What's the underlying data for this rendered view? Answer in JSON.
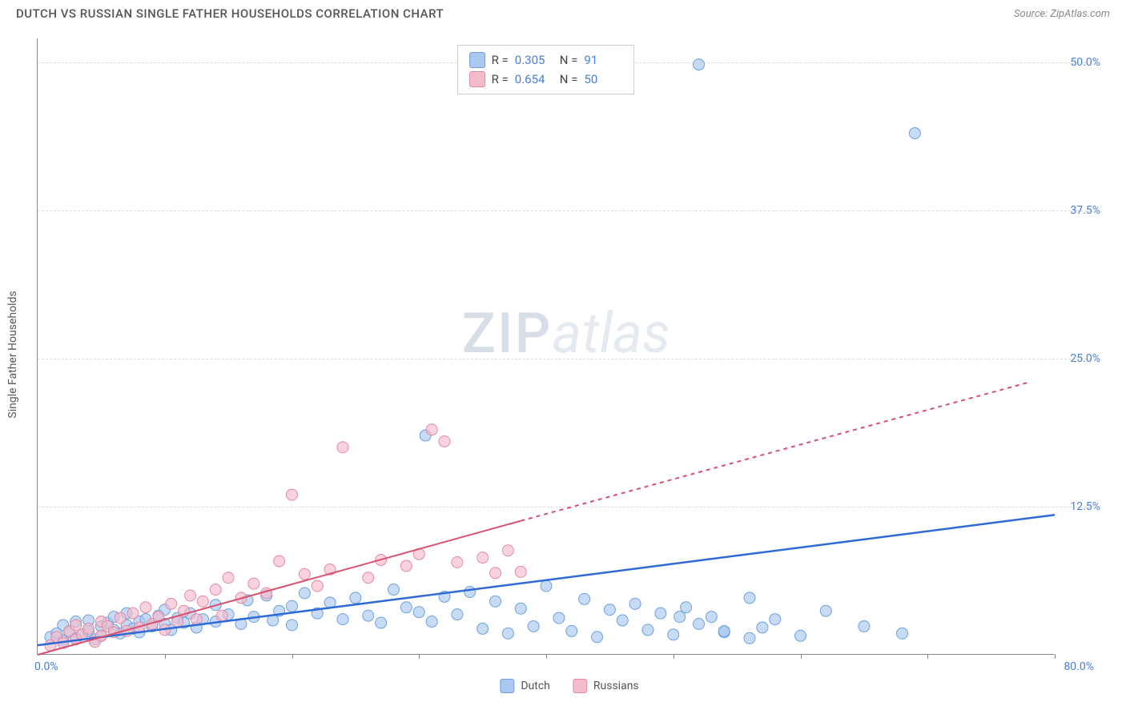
{
  "header": {
    "title": "DUTCH VS RUSSIAN SINGLE FATHER HOUSEHOLDS CORRELATION CHART",
    "source": "Source: ZipAtlas.com"
  },
  "watermark": {
    "zip": "ZIP",
    "atlas": "atlas"
  },
  "chart": {
    "type": "scatter",
    "y_axis_label": "Single Father Households",
    "background_color": "#ffffff",
    "grid_color": "#dddddd",
    "axis_color": "#888888",
    "xlim": [
      0,
      80
    ],
    "ylim": [
      0,
      52
    ],
    "x_ticks": [
      0,
      10,
      20,
      30,
      40,
      50,
      60,
      70,
      80
    ],
    "y_ticks": [
      12.5,
      25.0,
      37.5,
      50.0
    ],
    "y_tick_labels": [
      "12.5%",
      "25.0%",
      "37.5%",
      "50.0%"
    ],
    "origin_label": "0.0%",
    "xmax_label": "80.0%",
    "tick_label_color": "#4a7fd8",
    "axis_label_color": "#555555",
    "stats_box": {
      "border_color": "#cccccc",
      "rows": [
        {
          "swatch_fill": "#a9c7ef",
          "swatch_border": "#6ea0e0",
          "r_label": "R =",
          "r_value": "0.305",
          "n_label": "N =",
          "n_value": "91"
        },
        {
          "swatch_fill": "#f4bccb",
          "swatch_border": "#e38aa3",
          "r_label": "R =",
          "r_value": "0.654",
          "n_label": "N =",
          "n_value": "50"
        }
      ]
    },
    "bottom_legend": [
      {
        "swatch_fill": "#a9c7ef",
        "swatch_border": "#6ea0e0",
        "label": "Dutch"
      },
      {
        "swatch_fill": "#f4bccb",
        "swatch_border": "#e38aa3",
        "label": "Russians"
      }
    ],
    "series": [
      {
        "name": "Dutch",
        "marker_fill": "rgba(169,199,239,0.65)",
        "marker_stroke": "#6ea0e0",
        "marker_radius": 7,
        "trend_color": "#2e6bd6",
        "trend_width": 2.5,
        "trend_dash_extrapolate": "none",
        "trend": {
          "x1": 0,
          "y1": 0.8,
          "x2": 80,
          "y2": 11.8
        },
        "points": [
          [
            1,
            1.5
          ],
          [
            1.5,
            1.8
          ],
          [
            2,
            1.2
          ],
          [
            2,
            2.5
          ],
          [
            2.5,
            1.9
          ],
          [
            3,
            1.4
          ],
          [
            3,
            2.8
          ],
          [
            3.5,
            1.7
          ],
          [
            4,
            2.0
          ],
          [
            4,
            2.9
          ],
          [
            4.5,
            1.3
          ],
          [
            5,
            2.4
          ],
          [
            5,
            1.6
          ],
          [
            5.5,
            2.7
          ],
          [
            6,
            2.1
          ],
          [
            6,
            3.2
          ],
          [
            6.5,
            1.8
          ],
          [
            7,
            2.5
          ],
          [
            7,
            3.5
          ],
          [
            7.5,
            2.2
          ],
          [
            8,
            2.8
          ],
          [
            8,
            1.9
          ],
          [
            8.5,
            3.0
          ],
          [
            9,
            2.4
          ],
          [
            9.5,
            3.3
          ],
          [
            10,
            2.6
          ],
          [
            10,
            3.8
          ],
          [
            10.5,
            2.1
          ],
          [
            11,
            3.1
          ],
          [
            11.5,
            2.7
          ],
          [
            12,
            3.5
          ],
          [
            12.5,
            2.3
          ],
          [
            13,
            3.0
          ],
          [
            14,
            2.8
          ],
          [
            14,
            4.2
          ],
          [
            15,
            3.4
          ],
          [
            16,
            2.6
          ],
          [
            16.5,
            4.6
          ],
          [
            17,
            3.2
          ],
          [
            18,
            5.0
          ],
          [
            18.5,
            2.9
          ],
          [
            19,
            3.7
          ],
          [
            20,
            4.1
          ],
          [
            20,
            2.5
          ],
          [
            21,
            5.2
          ],
          [
            22,
            3.5
          ],
          [
            23,
            4.4
          ],
          [
            24,
            3.0
          ],
          [
            25,
            4.8
          ],
          [
            26,
            3.3
          ],
          [
            27,
            2.7
          ],
          [
            28,
            5.5
          ],
          [
            29,
            4.0
          ],
          [
            30,
            3.6
          ],
          [
            30.5,
            18.5
          ],
          [
            31,
            2.8
          ],
          [
            32,
            4.9
          ],
          [
            33,
            3.4
          ],
          [
            34,
            5.3
          ],
          [
            35,
            2.2
          ],
          [
            36,
            4.5
          ],
          [
            37,
            1.8
          ],
          [
            38,
            3.9
          ],
          [
            39,
            2.4
          ],
          [
            40,
            5.8
          ],
          [
            41,
            3.1
          ],
          [
            42,
            2.0
          ],
          [
            43,
            4.7
          ],
          [
            44,
            1.5
          ],
          [
            45,
            3.8
          ],
          [
            46,
            2.9
          ],
          [
            47,
            4.3
          ],
          [
            48,
            2.1
          ],
          [
            49,
            3.5
          ],
          [
            50,
            1.7
          ],
          [
            51,
            4.0
          ],
          [
            52,
            2.6
          ],
          [
            53,
            3.2
          ],
          [
            54,
            1.9
          ],
          [
            56,
            4.8
          ],
          [
            57,
            2.3
          ],
          [
            58,
            3.0
          ],
          [
            60,
            1.6
          ],
          [
            62,
            3.7
          ],
          [
            65,
            2.4
          ],
          [
            68,
            1.8
          ],
          [
            52,
            49.8
          ],
          [
            69,
            44.0
          ],
          [
            56,
            1.4
          ],
          [
            54,
            2.0
          ],
          [
            50.5,
            3.2
          ]
        ]
      },
      {
        "name": "Russians",
        "marker_fill": "rgba(244,188,203,0.65)",
        "marker_stroke": "#e38aa3",
        "marker_radius": 7,
        "trend_color": "#d8506f",
        "trend_width": 2,
        "trend_dash_extrapolate": "5,5",
        "trend_solid": {
          "x1": 0,
          "y1": 0,
          "x2": 38,
          "y2": 11.3
        },
        "trend_dashed": {
          "x1": 38,
          "y1": 11.3,
          "x2": 78,
          "y2": 23.0
        },
        "points": [
          [
            1,
            0.8
          ],
          [
            1.5,
            1.5
          ],
          [
            2,
            1.0
          ],
          [
            2.5,
            2.0
          ],
          [
            3,
            1.3
          ],
          [
            3,
            2.5
          ],
          [
            3.5,
            1.7
          ],
          [
            4,
            2.2
          ],
          [
            4.5,
            1.1
          ],
          [
            5,
            2.8
          ],
          [
            5,
            1.6
          ],
          [
            5.5,
            2.4
          ],
          [
            6,
            1.9
          ],
          [
            6.5,
            3.1
          ],
          [
            7,
            2.0
          ],
          [
            7.5,
            3.5
          ],
          [
            8,
            2.3
          ],
          [
            8.5,
            4.0
          ],
          [
            9,
            2.6
          ],
          [
            9.5,
            3.2
          ],
          [
            10,
            2.1
          ],
          [
            10.5,
            4.3
          ],
          [
            11,
            2.8
          ],
          [
            11.5,
            3.7
          ],
          [
            12,
            5.0
          ],
          [
            12.5,
            3.0
          ],
          [
            13,
            4.5
          ],
          [
            14,
            5.5
          ],
          [
            14.5,
            3.3
          ],
          [
            15,
            6.5
          ],
          [
            16,
            4.8
          ],
          [
            17,
            6.0
          ],
          [
            18,
            5.2
          ],
          [
            19,
            7.9
          ],
          [
            20,
            13.5
          ],
          [
            21,
            6.8
          ],
          [
            22,
            5.8
          ],
          [
            23,
            7.2
          ],
          [
            24,
            17.5
          ],
          [
            26,
            6.5
          ],
          [
            27,
            8.0
          ],
          [
            29,
            7.5
          ],
          [
            30,
            8.5
          ],
          [
            31,
            19.0
          ],
          [
            32,
            18.0
          ],
          [
            33,
            7.8
          ],
          [
            35,
            8.2
          ],
          [
            36,
            6.9
          ],
          [
            37,
            8.8
          ],
          [
            38,
            7.0
          ]
        ]
      }
    ]
  }
}
